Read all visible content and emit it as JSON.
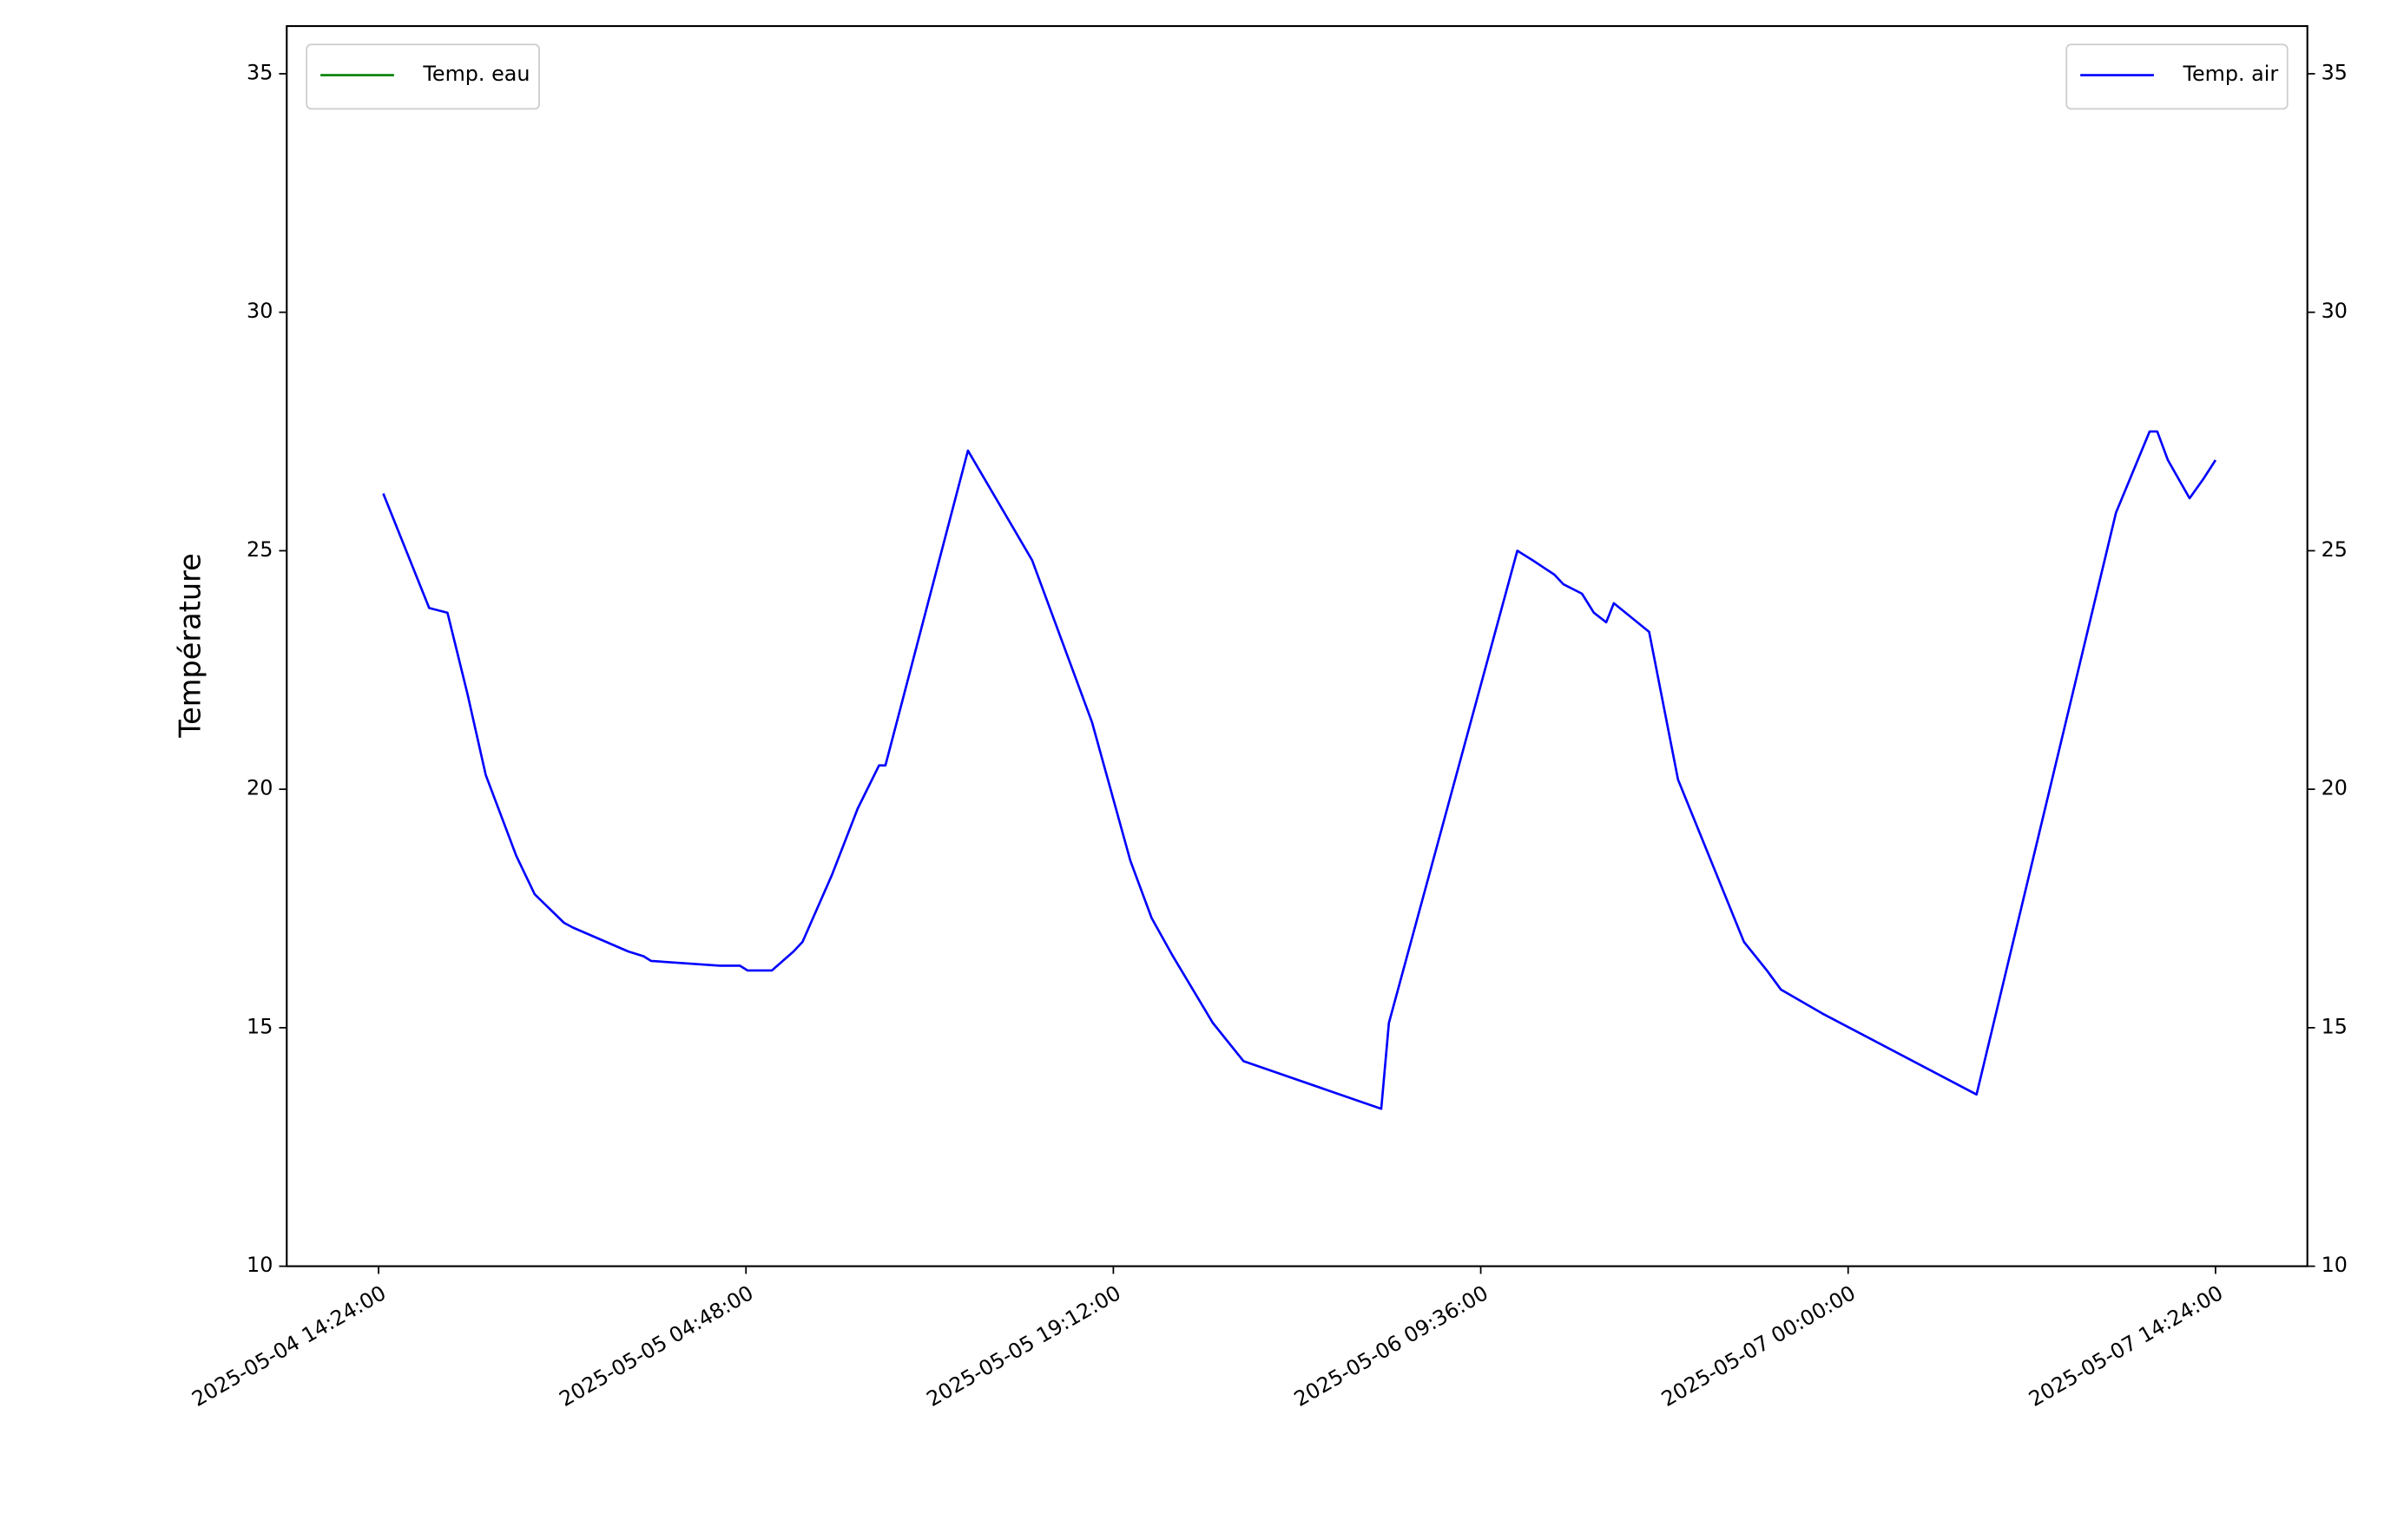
{
  "chart_data": {
    "type": "line",
    "y_label": "Température",
    "x": [
      "2025-05-04 14:35:00",
      "2025-05-04 16:23:00",
      "2025-05-04 17:06:00",
      "2025-05-04 17:53:00",
      "2025-05-04 18:36:00",
      "2025-05-04 19:48:00",
      "2025-05-04 20:31:00",
      "2025-05-04 21:40:00",
      "2025-05-04 22:01:00",
      "2025-05-05 00:11:00",
      "2025-05-05 00:47:00",
      "2025-05-05 01:05:00",
      "2025-05-05 03:47:00",
      "2025-05-05 04:34:00",
      "2025-05-05 04:52:00",
      "2025-05-05 05:49:00",
      "2025-05-05 06:40:00",
      "2025-05-05 07:01:00",
      "2025-05-05 08:10:00",
      "2025-05-05 09:11:00",
      "2025-05-05 10:01:00",
      "2025-05-05 10:16:00",
      "2025-05-05 13:30:00",
      "2025-05-05 16:01:00",
      "2025-05-05 18:22:00",
      "2025-05-05 19:52:00",
      "2025-05-05 20:42:00",
      "2025-05-05 21:32:00",
      "2025-05-05 23:06:00",
      "2025-05-05 23:24:00",
      "2025-05-06 00:18:00",
      "2025-05-06 05:42:00",
      "2025-05-06 06:00:00",
      "2025-05-06 11:02:00",
      "2025-05-06 11:38:00",
      "2025-05-06 12:29:00",
      "2025-05-06 12:50:00",
      "2025-05-06 13:34:00",
      "2025-05-06 14:02:00",
      "2025-05-06 14:31:00",
      "2025-05-06 14:49:00",
      "2025-05-06 16:12:00",
      "2025-05-06 17:20:00",
      "2025-05-06 19:55:00",
      "2025-05-06 20:49:00",
      "2025-05-06 21:22:00",
      "2025-05-06 22:59:00",
      "2025-05-07 05:02:00",
      "2025-05-07 10:30:00",
      "2025-05-07 11:49:00",
      "2025-05-07 12:07:00",
      "2025-05-07 12:32:00",
      "2025-05-07 13:23:00",
      "2025-05-07 13:55:00",
      "2025-05-07 14:24:00"
    ],
    "series": [
      {
        "name": "Temp. eau",
        "color": "#008000",
        "axis": "y",
        "legend": "upper left",
        "values": [
          null,
          null,
          null,
          null,
          null,
          null,
          null,
          null,
          null,
          null,
          null,
          null,
          null,
          null,
          null,
          null,
          null,
          null,
          null,
          null,
          null,
          null,
          null,
          null,
          null,
          null,
          null,
          null,
          null,
          null,
          null,
          null,
          null,
          null,
          null,
          null,
          null,
          null,
          null,
          null,
          null,
          null,
          null,
          null,
          null,
          null,
          null,
          null,
          null,
          null,
          null,
          null,
          null,
          null,
          null
        ]
      },
      {
        "name": "Temp. air",
        "color": "#0000ff",
        "axis": "y2",
        "legend": "upper right",
        "values": [
          26.2,
          23.8,
          23.7,
          22.0,
          20.3,
          18.6,
          17.8,
          17.2,
          17.1,
          16.6,
          16.5,
          16.4,
          16.3,
          16.3,
          16.2,
          16.2,
          16.6,
          16.8,
          18.2,
          19.6,
          20.5,
          20.5,
          27.1,
          24.8,
          21.4,
          18.5,
          17.3,
          16.5,
          15.1,
          14.9,
          14.3,
          13.3,
          15.1,
          25.0,
          24.8,
          24.5,
          24.3,
          24.1,
          23.7,
          23.5,
          23.9,
          23.3,
          20.2,
          16.8,
          16.2,
          15.8,
          15.3,
          13.6,
          25.8,
          27.5,
          27.5,
          26.9,
          26.1,
          26.5,
          26.9
        ]
      }
    ],
    "xlim": [
      "2025-05-04 10:48:00",
      "2025-05-07 18:00:00"
    ],
    "xticks": [
      "2025-05-04 14:24:00",
      "2025-05-05 04:48:00",
      "2025-05-05 19:12:00",
      "2025-05-06 09:36:00",
      "2025-05-07 00:00:00",
      "2025-05-07 14:24:00"
    ],
    "ylim": [
      10,
      36
    ],
    "yticks": [
      10,
      15,
      20,
      25,
      30,
      35
    ],
    "y2lim": [
      10,
      36
    ],
    "y2ticks": [
      10,
      15,
      20,
      25,
      30,
      35
    ]
  }
}
